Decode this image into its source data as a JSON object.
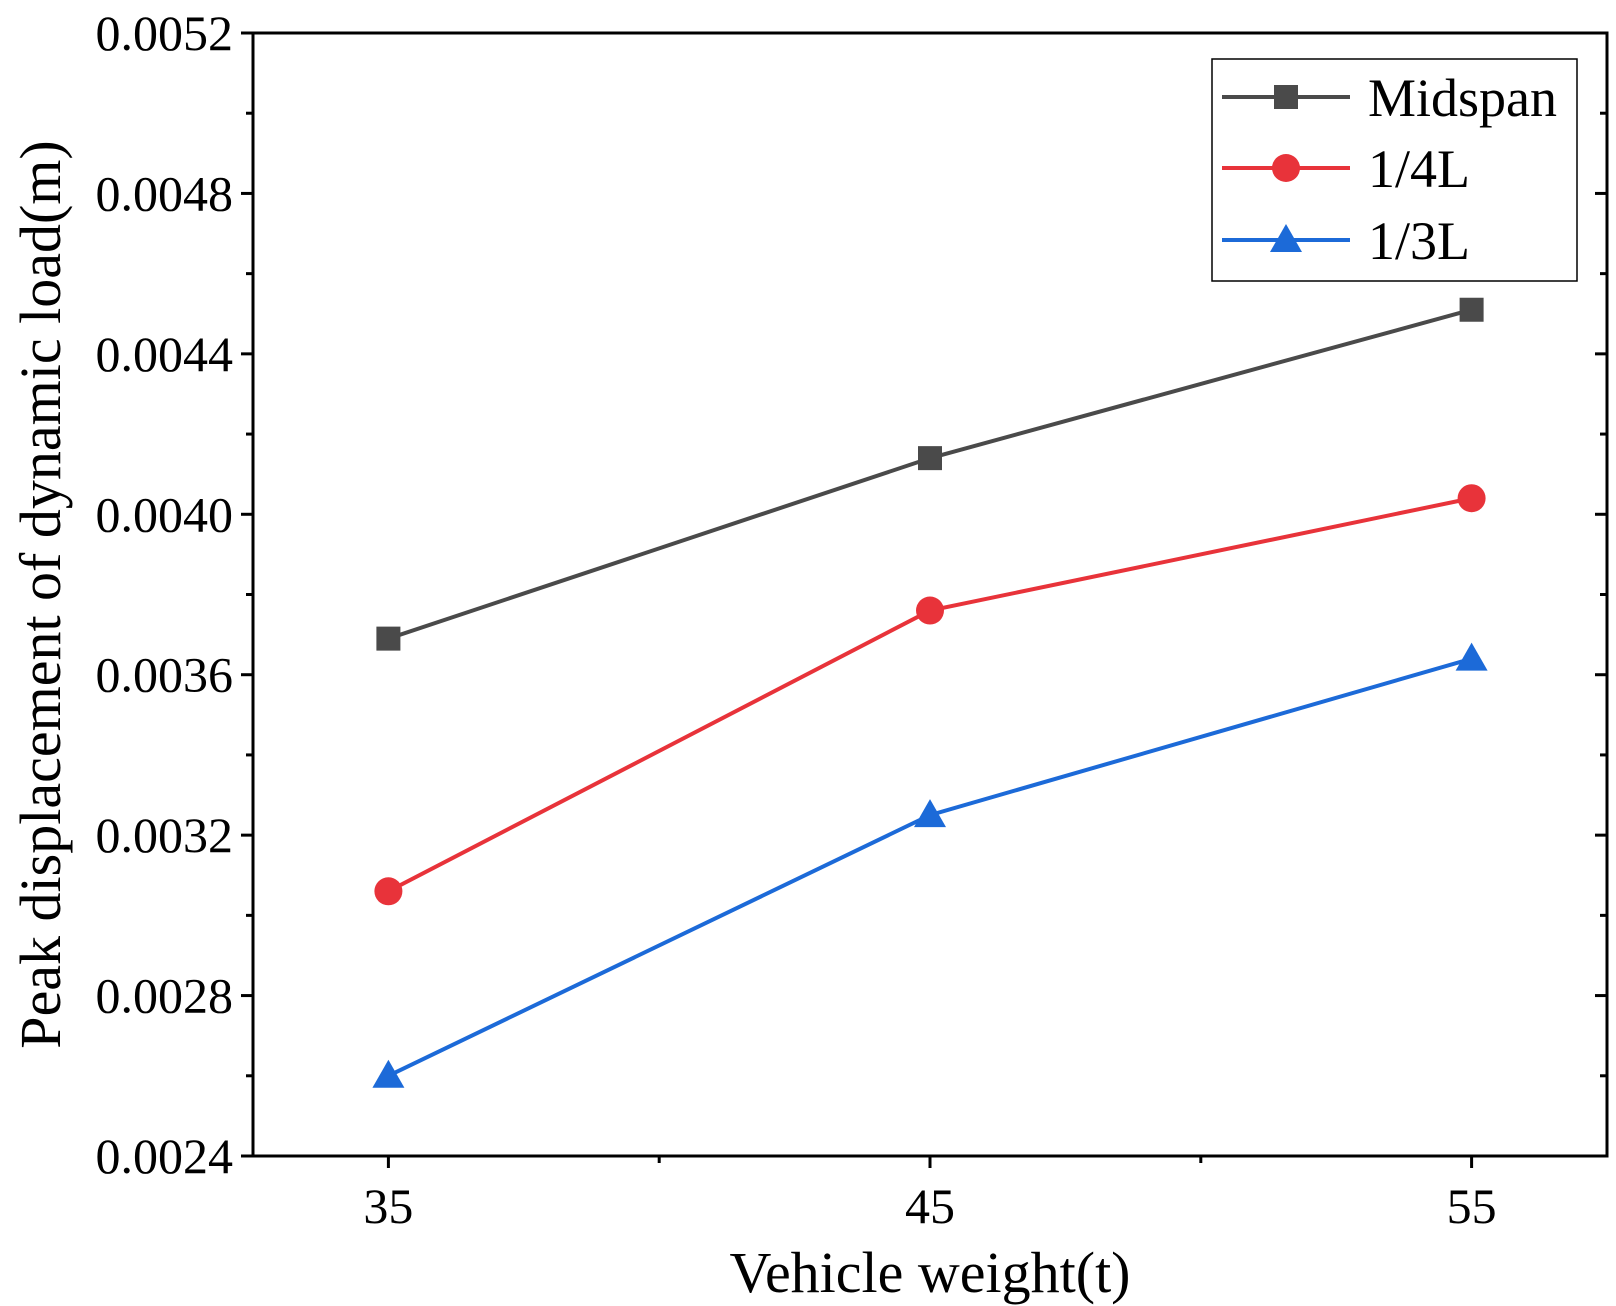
{
  "chart_data": {
    "type": "line",
    "title": "",
    "xlabel": "Vehicle weight(t)",
    "ylabel": "Peak displacement of dynamic load(m)",
    "x": [
      35,
      45,
      55
    ],
    "xticks": [
      "35",
      "45",
      "55"
    ],
    "xlim": [
      32.5,
      57.5
    ],
    "ylim": [
      0.0024,
      0.0052
    ],
    "yticks": [
      "0.0024",
      "0.0028",
      "0.0032",
      "0.0036",
      "0.0040",
      "0.0044",
      "0.0048",
      "0.0052"
    ],
    "ytick_values": [
      0.0024,
      0.0028,
      0.0032,
      0.0036,
      0.004,
      0.0044,
      0.0048,
      0.0052
    ],
    "grid": false,
    "legend_position": "top-right",
    "series": [
      {
        "name": "Midspan",
        "marker": "square",
        "color": "#4a4a4a",
        "values": [
          0.00369,
          0.00414,
          0.00451
        ]
      },
      {
        "name": "1/4L",
        "marker": "circle",
        "color": "#e8333a",
        "values": [
          0.00306,
          0.00376,
          0.00404
        ]
      },
      {
        "name": "1/3L",
        "marker": "triangle",
        "color": "#1c6ad8",
        "values": [
          0.0026,
          0.00325,
          0.00364
        ]
      }
    ]
  }
}
